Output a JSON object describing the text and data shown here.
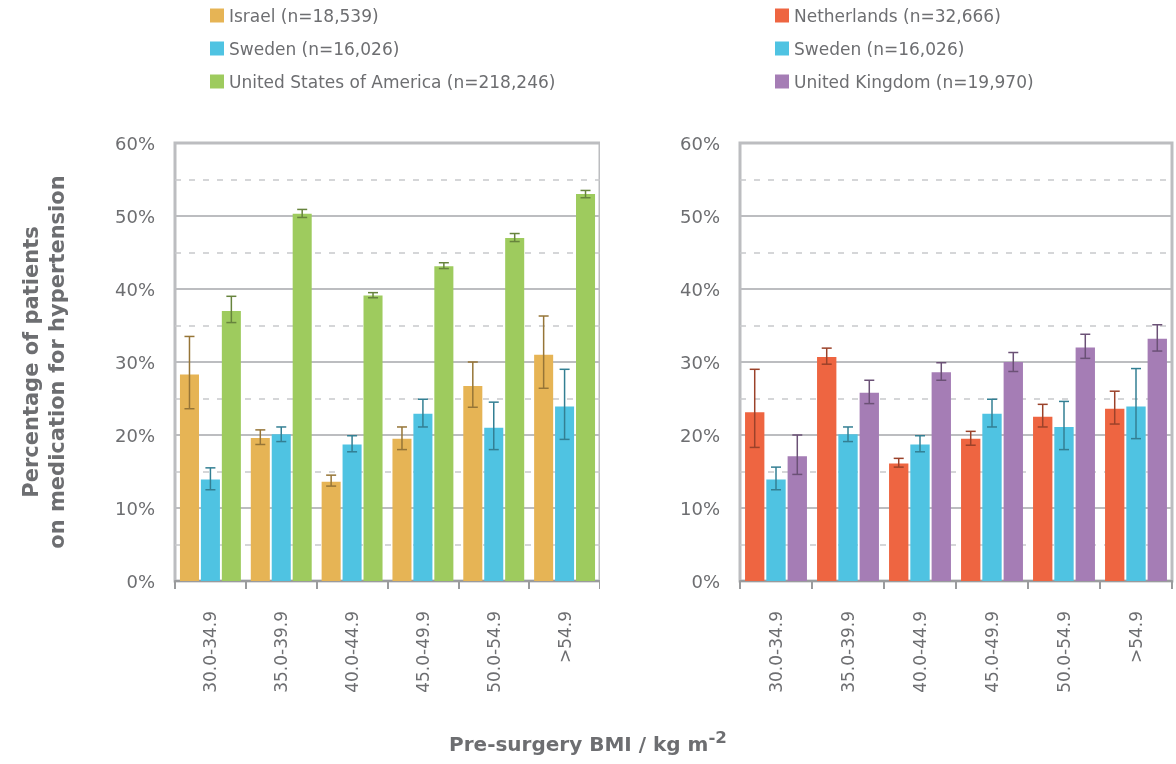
{
  "chart_data": [
    {
      "type": "bar",
      "ylabel": "Percentage of patients\non medication for hypertension",
      "xlabel": "Pre-surgery BMI / kg m$^{-2}$",
      "categories": [
        "30.0-34.9",
        "35.0-39.9",
        "40.0-44.9",
        "45.0-49.9",
        "50.0-54.9",
        ">54.9"
      ],
      "series": [
        {
          "name": "Israel (n=18,539)",
          "color": "#e6b455",
          "values": [
            28.3,
            19.6,
            13.6,
            19.5,
            26.7,
            31.0
          ],
          "errors": [
            [
              23.6,
              33.5
            ],
            [
              18.7,
              20.7
            ],
            [
              13.0,
              14.5
            ],
            [
              18.0,
              21.1
            ],
            [
              23.8,
              30.0
            ],
            [
              26.4,
              36.3
            ]
          ]
        },
        {
          "name": "Sweden (n=16,026)",
          "color": "#4fc3e2",
          "values": [
            13.9,
            20.1,
            18.7,
            22.9,
            21.0,
            23.9
          ],
          "errors": [
            [
              12.5,
              15.5
            ],
            [
              19.1,
              21.1
            ],
            [
              17.7,
              19.9
            ],
            [
              21.1,
              24.9
            ],
            [
              18.0,
              24.5
            ],
            [
              19.4,
              29.0
            ]
          ]
        },
        {
          "name": "United States of America (n=218,246)",
          "color": "#9ecb5e",
          "values": [
            37.0,
            50.3,
            39.1,
            43.1,
            47.0,
            53.0
          ],
          "errors": [
            [
              35.4,
              39.0
            ],
            [
              49.8,
              50.9
            ],
            [
              38.8,
              39.5
            ],
            [
              42.8,
              43.6
            ],
            [
              46.5,
              47.6
            ],
            [
              52.5,
              53.5
            ]
          ]
        }
      ],
      "ylim": [
        0,
        60
      ],
      "yticks": [
        {
          "value": 0,
          "label": "0%"
        },
        {
          "value": 10,
          "label": "10%"
        },
        {
          "value": 20,
          "label": "20%"
        },
        {
          "value": 30,
          "label": "30%"
        },
        {
          "value": 40,
          "label": "40%"
        },
        {
          "value": 50,
          "label": "50%"
        },
        {
          "value": 60,
          "label": "60%"
        }
      ],
      "grid": true,
      "legend": "top left"
    },
    {
      "type": "bar",
      "categories": [
        "30.0-34.9",
        "35.0-39.9",
        "40.0-44.9",
        "45.0-49.9",
        "50.0-54.9",
        ">54.9"
      ],
      "series": [
        {
          "name": "Netherlands (n=32,666)",
          "color": "#ee6541",
          "values": [
            23.1,
            30.7,
            16.1,
            19.5,
            22.5,
            23.6
          ],
          "errors": [
            [
              18.3,
              29.0
            ],
            [
              29.7,
              31.9
            ],
            [
              15.6,
              16.8
            ],
            [
              18.6,
              20.5
            ],
            [
              21.1,
              24.2
            ],
            [
              21.5,
              26.0
            ]
          ]
        },
        {
          "name": "Sweden (n=16,026)",
          "color": "#4fc3e2",
          "values": [
            13.9,
            20.1,
            18.7,
            22.9,
            21.1,
            23.9
          ],
          "errors": [
            [
              12.5,
              15.6
            ],
            [
              19.1,
              21.1
            ],
            [
              17.7,
              19.9
            ],
            [
              21.1,
              24.9
            ],
            [
              18.0,
              24.6
            ],
            [
              19.5,
              29.1
            ]
          ]
        },
        {
          "name": "United Kingdom (n=19,970)",
          "color": "#a57db5",
          "values": [
            17.1,
            25.8,
            28.6,
            30.0,
            32.0,
            33.2
          ],
          "errors": [
            [
              14.6,
              20.0
            ],
            [
              24.3,
              27.5
            ],
            [
              27.5,
              29.9
            ],
            [
              28.7,
              31.3
            ],
            [
              30.5,
              33.8
            ],
            [
              31.5,
              35.1
            ]
          ]
        }
      ],
      "ylim": [
        0,
        60
      ],
      "yticks": [
        {
          "value": 0,
          "label": "0%"
        },
        {
          "value": 10,
          "label": "10%"
        },
        {
          "value": 20,
          "label": "20%"
        },
        {
          "value": 30,
          "label": "30%"
        },
        {
          "value": 40,
          "label": "40%"
        },
        {
          "value": 50,
          "label": "50%"
        },
        {
          "value": 60,
          "label": "60%"
        }
      ],
      "grid": true,
      "legend": "top left"
    }
  ]
}
